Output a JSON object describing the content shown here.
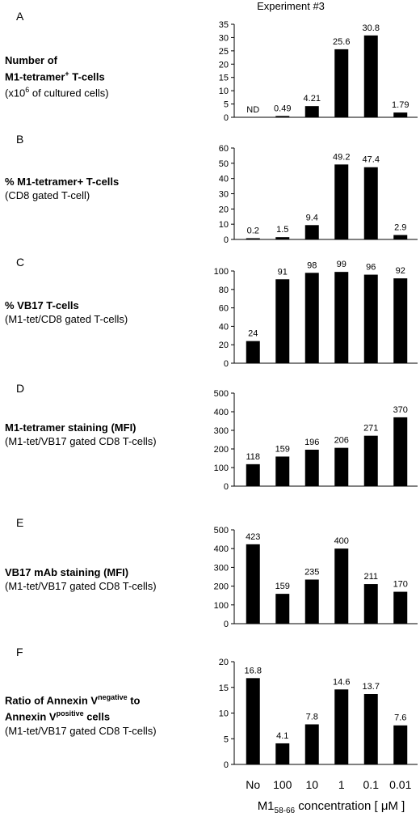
{
  "experiment_title": "Experiment #3",
  "x_axis": {
    "categories": [
      "No",
      "100",
      "10",
      "1",
      "0.1",
      "0.01"
    ],
    "label_main": "M1",
    "label_sub": "58-66",
    "label_rest": " concentration [ μM ]"
  },
  "panels": [
    {
      "letter": "A",
      "title_lines": [
        {
          "bold": true,
          "text": "Number of"
        },
        {
          "bold": true,
          "text": "M1-tetramer",
          "sup": "+",
          "after": " T-cells"
        },
        {
          "bold": false,
          "text": "(x10",
          "sup": "6",
          "after": " of cultured cells)"
        }
      ]
    },
    {
      "letter": "B",
      "title_lines": [
        {
          "bold": true,
          "text": "% M1-tetramer+ T-cells"
        },
        {
          "bold": false,
          "text": "(CD8 gated T-cell)"
        }
      ]
    },
    {
      "letter": "C",
      "title_lines": [
        {
          "bold": true,
          "text": "% VB17 T-cells"
        },
        {
          "bold": false,
          "text": "(M1-tet/CD8 gated T-cells)"
        }
      ]
    },
    {
      "letter": "D",
      "title_lines": [
        {
          "bold": true,
          "text": "M1-tetramer staining (MFI)"
        },
        {
          "bold": false,
          "text": "(M1-tet/VB17 gated CD8 T-cells)"
        }
      ]
    },
    {
      "letter": "E",
      "title_lines": [
        {
          "bold": true,
          "text": "VB17 mAb staining (MFI)"
        },
        {
          "bold": false,
          "text": "(M1-tet/VB17 gated CD8 T-cells)"
        }
      ]
    },
    {
      "letter": "F",
      "title_lines": [
        {
          "bold": true,
          "text": "Ratio of Annexin V",
          "sup": "negative",
          "after": " to"
        },
        {
          "bold": true,
          "text": " Annexin V",
          "sup": "positive",
          "after": " cells"
        },
        {
          "bold": false,
          "text": "(M1-tet/VB17 gated CD8 T-cells)"
        }
      ]
    }
  ],
  "chart_data": [
    {
      "type": "bar",
      "categories": [
        "No",
        "100",
        "10",
        "1",
        "0.1",
        "0.01"
      ],
      "values": [
        null,
        0.49,
        4.21,
        25.6,
        30.8,
        1.79
      ],
      "value_labels": [
        "ND",
        "0.49",
        "4.21",
        "25.6",
        "30.8",
        "1.79"
      ],
      "ylim": [
        0,
        35
      ],
      "yticks": [
        0,
        5,
        10,
        15,
        20,
        25,
        30,
        35
      ]
    },
    {
      "type": "bar",
      "categories": [
        "No",
        "100",
        "10",
        "1",
        "0.1",
        "0.01"
      ],
      "values": [
        0.2,
        1.5,
        9.4,
        49.2,
        47.4,
        2.9
      ],
      "value_labels": [
        "0.2",
        "1.5",
        "9.4",
        "49.2",
        "47.4",
        "2.9"
      ],
      "ylim": [
        0,
        60
      ],
      "yticks": [
        0,
        10,
        20,
        30,
        40,
        50,
        60
      ]
    },
    {
      "type": "bar",
      "categories": [
        "No",
        "100",
        "10",
        "1",
        "0.1",
        "0.01"
      ],
      "values": [
        24,
        91,
        98,
        99,
        96,
        92
      ],
      "value_labels": [
        "24",
        "91",
        "98",
        "99",
        "96",
        "92"
      ],
      "ylim": [
        0,
        100
      ],
      "yticks": [
        0,
        20,
        40,
        60,
        80,
        100
      ]
    },
    {
      "type": "bar",
      "categories": [
        "No",
        "100",
        "10",
        "1",
        "0.1",
        "0.01"
      ],
      "values": [
        118,
        159,
        196,
        206,
        271,
        370
      ],
      "value_labels": [
        "118",
        "159",
        "196",
        "206",
        "271",
        "370"
      ],
      "ylim": [
        0,
        500
      ],
      "yticks": [
        0,
        100,
        200,
        300,
        400,
        500
      ]
    },
    {
      "type": "bar",
      "categories": [
        "No",
        "100",
        "10",
        "1",
        "0.1",
        "0.01"
      ],
      "values": [
        423,
        159,
        235,
        400,
        211,
        170
      ],
      "value_labels": [
        "423",
        "159",
        "235",
        "400",
        "211",
        "170"
      ],
      "ylim": [
        0,
        500
      ],
      "yticks": [
        0,
        100,
        200,
        300,
        400,
        500
      ]
    },
    {
      "type": "bar",
      "categories": [
        "No",
        "100",
        "10",
        "1",
        "0.1",
        "0.01"
      ],
      "values": [
        16.8,
        4.1,
        7.8,
        14.6,
        13.7,
        7.6
      ],
      "value_labels": [
        "16.8",
        "4.1",
        "7.8",
        "14.6",
        "13.7",
        "7.6"
      ],
      "ylim": [
        0,
        20
      ],
      "yticks": [
        0,
        5,
        10,
        15,
        20
      ]
    }
  ]
}
